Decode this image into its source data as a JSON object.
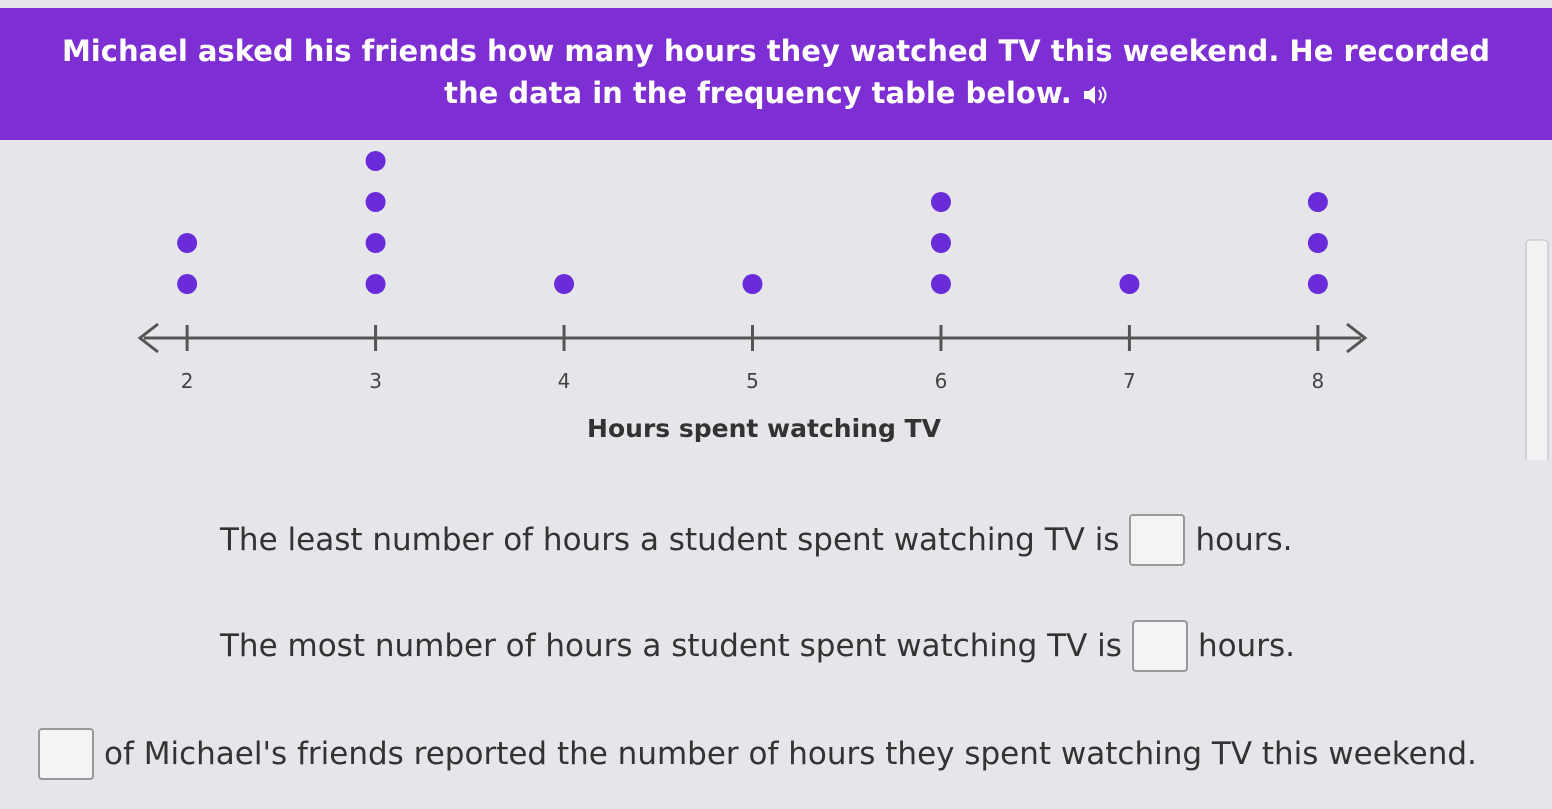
{
  "header": {
    "title": "Michael asked his friends how many hours they watched TV this weekend. He recorded the data in the frequency table below."
  },
  "chart_data": {
    "type": "dot",
    "x_label": "Hours spent watching TV",
    "x": [
      2,
      3,
      4,
      5,
      6,
      7,
      8
    ],
    "values": [
      2,
      4,
      1,
      1,
      3,
      1,
      3
    ],
    "color": "#6a2bd9",
    "xlim": [
      1.75,
      8.25
    ],
    "xticks": [
      2,
      3,
      4,
      5,
      6,
      7,
      8
    ]
  },
  "questions": [
    {
      "before": "The least number of hours a student spent watching TV is",
      "after": "hours."
    },
    {
      "before": "The most number of hours a student spent watching TV is",
      "after": "hours."
    },
    {
      "after": "of Michael's friends reported the number of hours they spent watching TV this weekend."
    }
  ]
}
